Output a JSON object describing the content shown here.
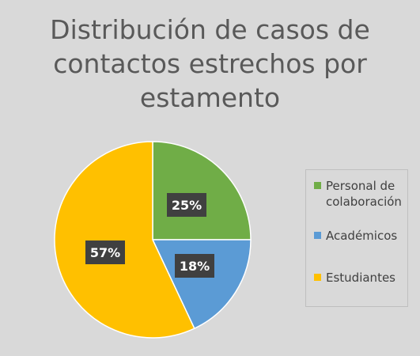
{
  "chart_data": {
    "type": "pie",
    "title": "Distribución de casos de contactos estrechos por estamento",
    "slices": [
      {
        "name": "Personal de colaboración",
        "value": 25,
        "label": "25%",
        "color": "#70ad47"
      },
      {
        "name": "Académicos",
        "value": 18,
        "label": "18%",
        "color": "#5b9bd5"
      },
      {
        "name": "Estudiantes",
        "value": 57,
        "label": "57%",
        "color": "#ffc000"
      }
    ],
    "legend_position": "right"
  },
  "colors": {
    "background": "#d9d9d9",
    "title_text": "#595959",
    "data_label_bg": "#404040",
    "data_label_text": "#ffffff"
  }
}
